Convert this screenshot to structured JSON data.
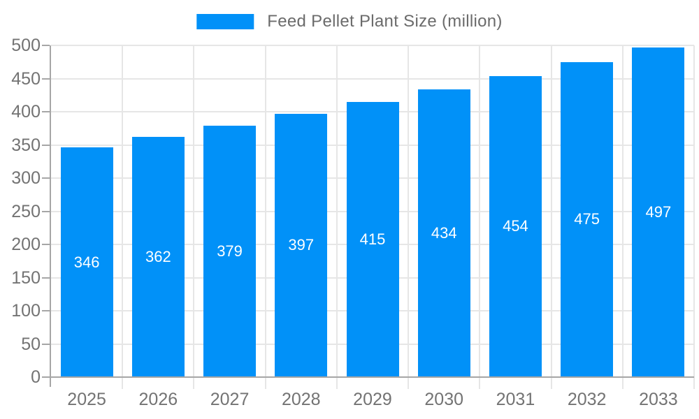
{
  "chart_data": {
    "type": "bar",
    "title": "Feed Pellet Plant Size (million)",
    "legend": {
      "entries": [
        "Feed Pellet Plant Size (million)"
      ],
      "position": "top-center"
    },
    "categories": [
      "2025",
      "2026",
      "2027",
      "2028",
      "2029",
      "2030",
      "2031",
      "2032",
      "2033"
    ],
    "values": [
      346,
      362,
      379,
      397,
      415,
      434,
      454,
      475,
      497
    ],
    "xlabel": "",
    "ylabel": "",
    "ylim": [
      0,
      500
    ],
    "yticks": [
      0,
      50,
      100,
      150,
      200,
      250,
      300,
      350,
      400,
      450,
      500
    ],
    "grid": true,
    "value_labels_position": "inside-middle",
    "colors": {
      "bar": "#0191f8",
      "value_label": "#ffffff",
      "axis_line": "#a6a6a6",
      "grid_line": "#e6e6e6",
      "tick_label": "#737373",
      "legend_text": "#6b6b6b",
      "background": "#ffffff"
    }
  }
}
